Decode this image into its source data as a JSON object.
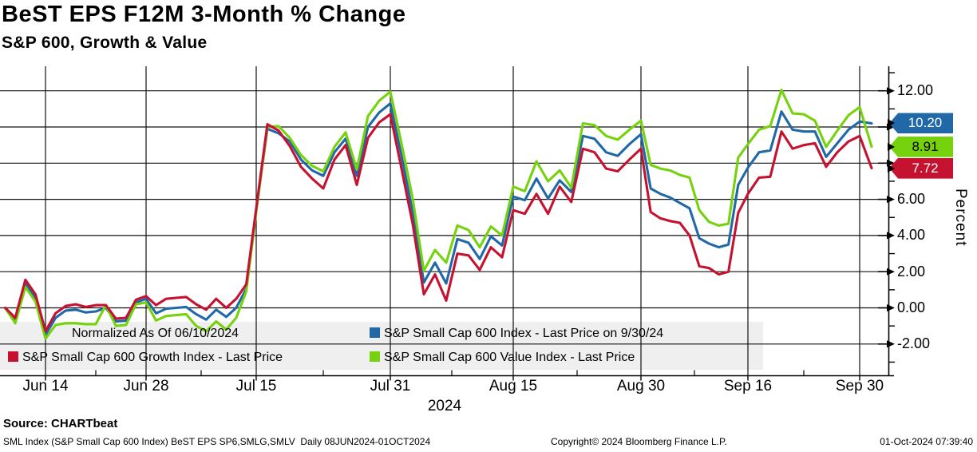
{
  "title": "BeST EPS F12M 3-Month % Change",
  "subtitle": "S&P 600, Growth & Value",
  "source_line": "Source: CHARTbeat",
  "footer": {
    "left": "SML Index (S&P Small Cap 600 Index) BeST EPS SP6,SMLG,SMLV  Daily 08JUN2024-01OCT2024",
    "center": "Copyright© 2024 Bloomberg Finance L.P.",
    "right": "01-Oct-2024 07:39:40"
  },
  "legend": {
    "note": "Normalized As Of 06/10/2024",
    "items": [
      {
        "label": "S&P Small Cap 600 Index - Last Price on 9/30/24",
        "color": "#2068a8"
      },
      {
        "label": "S&P Small Cap 600 Growth Index - Last Price",
        "color": "#c41230"
      },
      {
        "label": "S&P Small Cap 600 Value Index - Last Price",
        "color": "#76d20c"
      }
    ]
  },
  "y_axis_title": "Percent",
  "chart_data": {
    "type": "line",
    "title": "BeST EPS F12M 3-Month % Change",
    "x_label_year": "2024",
    "ylim": [
      -3.75,
      13.35
    ],
    "grid": true,
    "legend_position": "bottom-left-overlay",
    "y_major_ticks": [
      {
        "value": 12,
        "label": "12.00"
      },
      {
        "value": 10,
        "label": ""
      },
      {
        "value": 8,
        "label": ""
      },
      {
        "value": 6,
        "label": "6.00"
      },
      {
        "value": 4,
        "label": "4.00"
      },
      {
        "value": 2,
        "label": "2.00"
      },
      {
        "value": 0,
        "label": "0.00"
      },
      {
        "value": -2,
        "label": "-2.00"
      }
    ],
    "y_minor_ticks": [
      13,
      11,
      9,
      7,
      5,
      3,
      1,
      -1,
      -3
    ],
    "x_ticks": [
      {
        "label": "Jun 14",
        "index": 4
      },
      {
        "label": "Jun 28",
        "index": 14
      },
      {
        "label": "Jul 15",
        "index": 25
      },
      {
        "label": "Jul 31",
        "index": 37
      },
      {
        "label": "Aug 15",
        "index": 48
      },
      {
        "label": "Aug 30",
        "index": 59
      },
      {
        "label": "Sep 16",
        "index": 70
      },
      {
        "label": "Sep 30",
        "index": 80
      }
    ],
    "dates": [
      "Jun 10",
      "Jun 11",
      "Jun 12",
      "Jun 13",
      "Jun 14",
      "Jun 17",
      "Jun 18",
      "Jun 19",
      "Jun 20",
      "Jun 21",
      "Jun 24",
      "Jun 25",
      "Jun 26",
      "Jun 27",
      "Jun 28",
      "Jul 1",
      "Jul 2",
      "Jul 3",
      "Jul 4",
      "Jul 5",
      "Jul 8",
      "Jul 9",
      "Jul 10",
      "Jul 11",
      "Jul 12",
      "Jul 15",
      "Jul 16",
      "Jul 17",
      "Jul 18",
      "Jul 19",
      "Jul 22",
      "Jul 23",
      "Jul 24",
      "Jul 25",
      "Jul 26",
      "Jul 29",
      "Jul 30",
      "Jul 31",
      "Aug 1",
      "Aug 2",
      "Aug 5",
      "Aug 6",
      "Aug 7",
      "Aug 8",
      "Aug 9",
      "Aug 12",
      "Aug 13",
      "Aug 14",
      "Aug 15",
      "Aug 16",
      "Aug 19",
      "Aug 20",
      "Aug 21",
      "Aug 22",
      "Aug 23",
      "Aug 26",
      "Aug 27",
      "Aug 28",
      "Aug 29",
      "Aug 30",
      "Sep 2",
      "Sep 3",
      "Sep 4",
      "Sep 5",
      "Sep 6",
      "Sep 9",
      "Sep 10",
      "Sep 11",
      "Sep 12",
      "Sep 13",
      "Sep 16",
      "Sep 17",
      "Sep 18",
      "Sep 19",
      "Sep 20",
      "Sep 23",
      "Sep 24",
      "Sep 25",
      "Sep 26",
      "Sep 27",
      "Sep 30",
      "Oct 1"
    ],
    "series": [
      {
        "name": "S&P Small Cap 600 Index - Last Price on 9/30/24",
        "color": "#2068a8",
        "values": [
          0,
          -0.7,
          1.35,
          0.55,
          -1.5,
          -0.55,
          -0.15,
          -0.1,
          -0.25,
          -0.2,
          0,
          -0.75,
          -0.7,
          0.3,
          0.5,
          -0.3,
          -0.05,
          0,
          0.05,
          -0.35,
          -0.65,
          -0.1,
          -0.5,
          0,
          1.05,
          5.4,
          9.9,
          9.65,
          9.2,
          8.2,
          7.6,
          7.3,
          8.6,
          9.35,
          7.3,
          10,
          10.8,
          11.3,
          8.4,
          5.3,
          1.4,
          2.5,
          1.35,
          3.8,
          3.6,
          2.7,
          3.95,
          3.45,
          6.15,
          5.95,
          7.15,
          6.05,
          7.05,
          6.4,
          9.5,
          9.35,
          8.6,
          8.4,
          9.05,
          9.6,
          6.6,
          6.3,
          6.1,
          5.8,
          5.5,
          3.85,
          3.55,
          3.35,
          3.5,
          6.8,
          7.75,
          8.6,
          8.7,
          10.85,
          9.85,
          9.75,
          9.75,
          8.35,
          9.1,
          9.85,
          10.3,
          10.2
        ]
      },
      {
        "name": "S&P Small Cap 600 Growth Index - Last Price",
        "color": "#c41230",
        "values": [
          0,
          -0.55,
          1.55,
          0.75,
          -1.3,
          -0.3,
          0.1,
          0.2,
          0.05,
          0.15,
          0.15,
          -0.6,
          -0.55,
          0.45,
          0.65,
          0.15,
          0.5,
          0.55,
          0.6,
          0.2,
          -0.1,
          0.5,
          0,
          0.5,
          1.3,
          5.5,
          10.15,
          9.8,
          8.95,
          7.8,
          7.15,
          6.6,
          8.2,
          9,
          6.8,
          9.4,
          10.25,
          10.7,
          7.7,
          4.65,
          0.75,
          1.85,
          0.4,
          3,
          2.9,
          2.1,
          3.35,
          2.8,
          5.4,
          5.2,
          6.3,
          5.2,
          6.7,
          5.85,
          8.8,
          8.6,
          7.7,
          7.55,
          8.2,
          8.8,
          5.3,
          4.95,
          4.8,
          4.7,
          4,
          2.3,
          2.2,
          1.85,
          2,
          5.25,
          6.3,
          7.2,
          7.25,
          9.75,
          8.8,
          9,
          9.1,
          7.8,
          8.6,
          9.2,
          9.5,
          7.72
        ]
      },
      {
        "name": "S&P Small Cap 600 Value Index - Last Price",
        "color": "#76d20c",
        "values": [
          0,
          -0.85,
          1.15,
          0.35,
          -1.7,
          -0.95,
          -0.85,
          -0.85,
          -0.9,
          -0.9,
          0.15,
          -1,
          -0.95,
          0.2,
          0.3,
          -0.7,
          -0.45,
          -0.4,
          -0.35,
          -1,
          -1.3,
          -0.75,
          -1.2,
          -0.55,
          0.9,
          5.3,
          10,
          10.05,
          9.4,
          8.45,
          7.85,
          7.55,
          8.9,
          9.7,
          7.65,
          10.6,
          11.45,
          11.95,
          9.1,
          6.05,
          2.05,
          3.2,
          2.5,
          4.55,
          4.3,
          3.35,
          4.5,
          4,
          6.7,
          6.45,
          8.1,
          7,
          7.6,
          6.65,
          10.2,
          10.1,
          9.5,
          9.3,
          9.85,
          10.35,
          7.9,
          7.7,
          7.6,
          7.35,
          7.2,
          5.4,
          4.75,
          4.55,
          4.65,
          8.3,
          9.05,
          9.85,
          10.05,
          12.05,
          10.75,
          10.7,
          10.35,
          8.9,
          9.8,
          10.65,
          11.1,
          8.91
        ]
      }
    ],
    "last_value_flags": [
      {
        "text": "10.20",
        "value": 10.2,
        "bg": "#2068a8",
        "fg": "#ffffff"
      },
      {
        "text": "8.91",
        "value": 8.91,
        "bg": "#76d20c",
        "fg": "#000000"
      },
      {
        "text": "7.72",
        "value": 7.72,
        "bg": "#c41230",
        "fg": "#ffffff"
      }
    ]
  }
}
